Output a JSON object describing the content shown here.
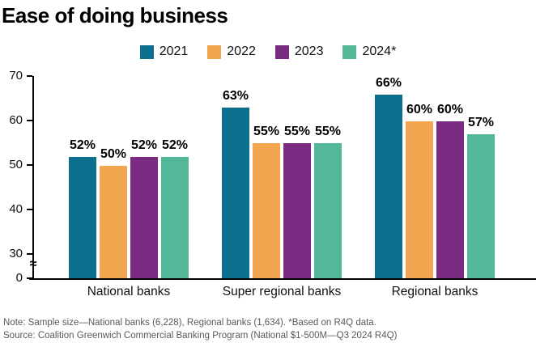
{
  "title": "Ease of doing business",
  "chart_data": {
    "type": "bar",
    "title": "Ease of doing business",
    "categories": [
      "National banks",
      "Super regional banks",
      "Regional banks"
    ],
    "series": [
      {
        "name": "2021",
        "color": "#0b6f8d",
        "values": [
          52,
          63,
          66
        ]
      },
      {
        "name": "2022",
        "color": "#f0a54e",
        "values": [
          50,
          55,
          60
        ]
      },
      {
        "name": "2023",
        "color": "#7b2b82",
        "values": [
          52,
          55,
          60
        ]
      },
      {
        "name": "2024*",
        "color": "#53b89a",
        "values": [
          52,
          55,
          57
        ]
      }
    ],
    "value_suffix": "%",
    "xlabel": "",
    "ylabel": "",
    "yticks": [
      70,
      60,
      50,
      40,
      30,
      0
    ],
    "ylim": [
      0,
      70
    ],
    "axis_break_between": [
      0,
      30
    ],
    "grid": false,
    "legend_position": "top-center",
    "data_labels": true
  },
  "notes": {
    "note": "Note: Sample size—National banks (6,228), Regional banks (1,634). *Based on R4Q data.",
    "source": "Source: Coalition Greenwich Commercial Banking Program (National $1-500M—Q3 2024 R4Q)"
  }
}
